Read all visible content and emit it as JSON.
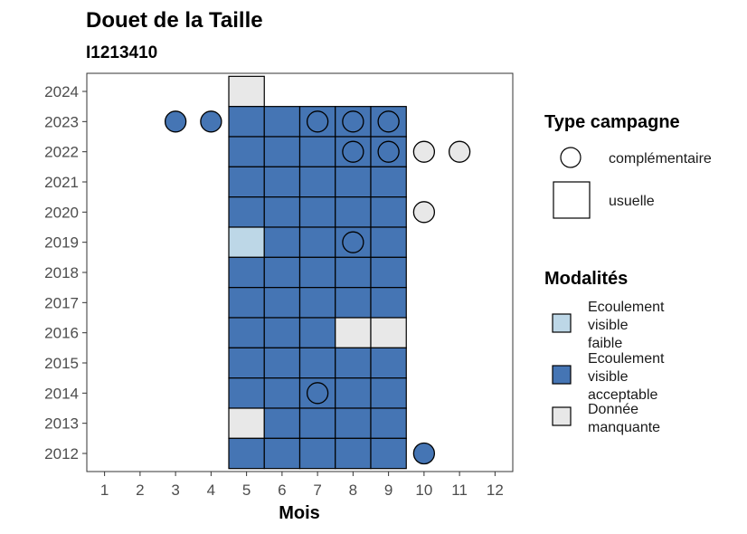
{
  "chart_data": {
    "type": "heatmap",
    "title": "Douet de la Taille",
    "subtitle": "I1213410",
    "xlabel": "Mois",
    "ylabel": "",
    "x_ticks": [
      1,
      2,
      3,
      4,
      5,
      6,
      7,
      8,
      9,
      10,
      11,
      12
    ],
    "y_ticks": [
      2012,
      2013,
      2014,
      2015,
      2016,
      2017,
      2018,
      2019,
      2020,
      2021,
      2022,
      2023,
      2024
    ],
    "xlim": [
      0.5,
      12.5
    ],
    "ylim": [
      2011.4,
      2024.6
    ],
    "modalites": [
      {
        "key": "faible",
        "label_lines": [
          "Ecoulement",
          "visible",
          "faible"
        ],
        "color": "#bdd7e7"
      },
      {
        "key": "acceptable",
        "label_lines": [
          "Ecoulement",
          "visible",
          "acceptable"
        ],
        "color": "#4575b4"
      },
      {
        "key": "manquante",
        "label_lines": [
          "Donnée",
          "manquante"
        ],
        "color": "#e8e8e8"
      }
    ],
    "type_campagne": [
      {
        "key": "complementaire",
        "label": "complémentaire",
        "shape": "circle"
      },
      {
        "key": "usuelle",
        "label": "usuelle",
        "shape": "square"
      }
    ],
    "legend_titles": {
      "type": "Type campagne",
      "modalites": "Modalités"
    },
    "legend_position": "right",
    "usuelle": [
      {
        "year": 2024,
        "month": 5,
        "m": "manquante"
      },
      {
        "year": 2023,
        "month": 5,
        "m": "acceptable"
      },
      {
        "year": 2023,
        "month": 6,
        "m": "acceptable"
      },
      {
        "year": 2023,
        "month": 7,
        "m": "acceptable"
      },
      {
        "year": 2023,
        "month": 8,
        "m": "acceptable"
      },
      {
        "year": 2023,
        "month": 9,
        "m": "acceptable"
      },
      {
        "year": 2022,
        "month": 5,
        "m": "acceptable"
      },
      {
        "year": 2022,
        "month": 6,
        "m": "acceptable"
      },
      {
        "year": 2022,
        "month": 7,
        "m": "acceptable"
      },
      {
        "year": 2022,
        "month": 8,
        "m": "acceptable"
      },
      {
        "year": 2022,
        "month": 9,
        "m": "acceptable"
      },
      {
        "year": 2021,
        "month": 5,
        "m": "acceptable"
      },
      {
        "year": 2021,
        "month": 6,
        "m": "acceptable"
      },
      {
        "year": 2021,
        "month": 7,
        "m": "acceptable"
      },
      {
        "year": 2021,
        "month": 8,
        "m": "acceptable"
      },
      {
        "year": 2021,
        "month": 9,
        "m": "acceptable"
      },
      {
        "year": 2020,
        "month": 5,
        "m": "acceptable"
      },
      {
        "year": 2020,
        "month": 6,
        "m": "acceptable"
      },
      {
        "year": 2020,
        "month": 7,
        "m": "acceptable"
      },
      {
        "year": 2020,
        "month": 8,
        "m": "acceptable"
      },
      {
        "year": 2020,
        "month": 9,
        "m": "acceptable"
      },
      {
        "year": 2019,
        "month": 5,
        "m": "faible"
      },
      {
        "year": 2019,
        "month": 6,
        "m": "acceptable"
      },
      {
        "year": 2019,
        "month": 7,
        "m": "acceptable"
      },
      {
        "year": 2019,
        "month": 8,
        "m": "acceptable"
      },
      {
        "year": 2019,
        "month": 9,
        "m": "acceptable"
      },
      {
        "year": 2018,
        "month": 5,
        "m": "acceptable"
      },
      {
        "year": 2018,
        "month": 6,
        "m": "acceptable"
      },
      {
        "year": 2018,
        "month": 7,
        "m": "acceptable"
      },
      {
        "year": 2018,
        "month": 8,
        "m": "acceptable"
      },
      {
        "year": 2018,
        "month": 9,
        "m": "acceptable"
      },
      {
        "year": 2017,
        "month": 5,
        "m": "acceptable"
      },
      {
        "year": 2017,
        "month": 6,
        "m": "acceptable"
      },
      {
        "year": 2017,
        "month": 7,
        "m": "acceptable"
      },
      {
        "year": 2017,
        "month": 8,
        "m": "acceptable"
      },
      {
        "year": 2017,
        "month": 9,
        "m": "acceptable"
      },
      {
        "year": 2016,
        "month": 5,
        "m": "acceptable"
      },
      {
        "year": 2016,
        "month": 6,
        "m": "acceptable"
      },
      {
        "year": 2016,
        "month": 7,
        "m": "acceptable"
      },
      {
        "year": 2016,
        "month": 8,
        "m": "manquante"
      },
      {
        "year": 2016,
        "month": 9,
        "m": "manquante"
      },
      {
        "year": 2015,
        "month": 5,
        "m": "acceptable"
      },
      {
        "year": 2015,
        "month": 6,
        "m": "acceptable"
      },
      {
        "year": 2015,
        "month": 7,
        "m": "acceptable"
      },
      {
        "year": 2015,
        "month": 8,
        "m": "acceptable"
      },
      {
        "year": 2015,
        "month": 9,
        "m": "acceptable"
      },
      {
        "year": 2014,
        "month": 5,
        "m": "acceptable"
      },
      {
        "year": 2014,
        "month": 6,
        "m": "acceptable"
      },
      {
        "year": 2014,
        "month": 7,
        "m": "acceptable"
      },
      {
        "year": 2014,
        "month": 8,
        "m": "acceptable"
      },
      {
        "year": 2014,
        "month": 9,
        "m": "acceptable"
      },
      {
        "year": 2013,
        "month": 5,
        "m": "manquante"
      },
      {
        "year": 2013,
        "month": 6,
        "m": "acceptable"
      },
      {
        "year": 2013,
        "month": 7,
        "m": "acceptable"
      },
      {
        "year": 2013,
        "month": 8,
        "m": "acceptable"
      },
      {
        "year": 2013,
        "month": 9,
        "m": "acceptable"
      },
      {
        "year": 2012,
        "month": 5,
        "m": "acceptable"
      },
      {
        "year": 2012,
        "month": 6,
        "m": "acceptable"
      },
      {
        "year": 2012,
        "month": 7,
        "m": "acceptable"
      },
      {
        "year": 2012,
        "month": 8,
        "m": "acceptable"
      },
      {
        "year": 2012,
        "month": 9,
        "m": "acceptable"
      }
    ],
    "complementaire": [
      {
        "year": 2023,
        "month": 3,
        "m": "acceptable"
      },
      {
        "year": 2023,
        "month": 4,
        "m": "acceptable"
      },
      {
        "year": 2023,
        "month": 7,
        "m": "acceptable"
      },
      {
        "year": 2023,
        "month": 8,
        "m": "acceptable"
      },
      {
        "year": 2023,
        "month": 9,
        "m": "acceptable"
      },
      {
        "year": 2022,
        "month": 8,
        "m": "acceptable"
      },
      {
        "year": 2022,
        "month": 9,
        "m": "acceptable"
      },
      {
        "year": 2022,
        "month": 10,
        "m": "manquante"
      },
      {
        "year": 2022,
        "month": 11,
        "m": "manquante"
      },
      {
        "year": 2020,
        "month": 10,
        "m": "manquante"
      },
      {
        "year": 2019,
        "month": 8,
        "m": "acceptable"
      },
      {
        "year": 2014,
        "month": 7,
        "m": "acceptable"
      },
      {
        "year": 2012,
        "month": 10,
        "m": "acceptable"
      }
    ]
  }
}
